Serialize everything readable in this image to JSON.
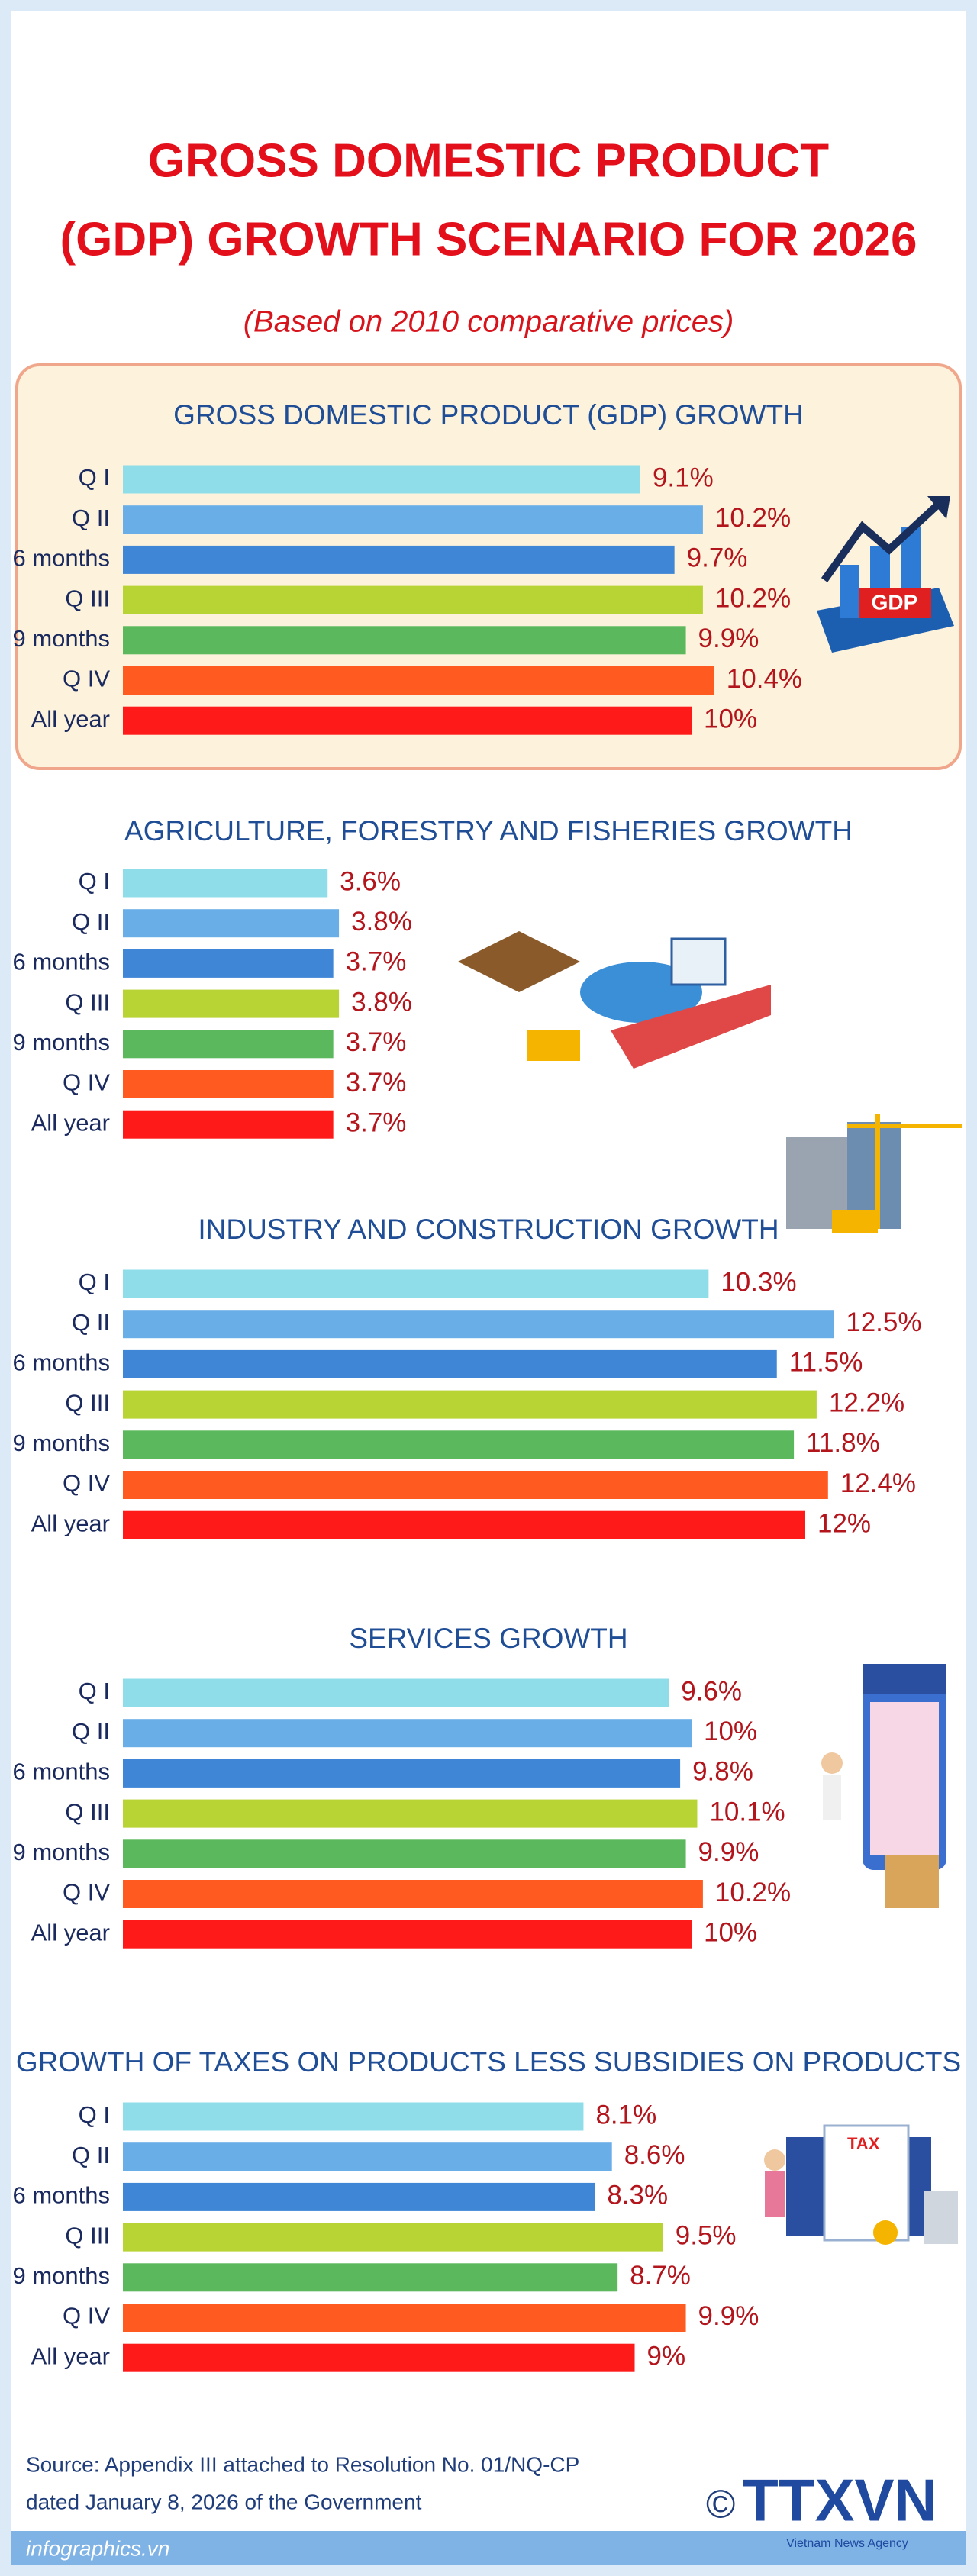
{
  "header": {
    "title": [
      "GROSS DOMESTIC PRODUCT",
      "(GDP) GROWTH SCENARIO FOR 2026"
    ],
    "subtitle": "(Based on 2010 comparative prices)"
  },
  "chart_data": [
    {
      "type": "bar",
      "title": "GROSS DOMESTIC PRODUCT (GDP) GROWTH",
      "categories": [
        "Q I",
        "Q II",
        "6 months",
        "Q III",
        "9 months",
        "Q IV",
        "All year"
      ],
      "values": [
        9.1,
        10.2,
        9.7,
        10.2,
        9.9,
        10.4,
        10
      ],
      "value_labels": [
        "9.1%",
        "10.2%",
        "9.7%",
        "10.2%",
        "9.9%",
        "10.4%",
        "10%"
      ],
      "colors": [
        "#8fdde9",
        "#6aaee8",
        "#3f86d6",
        "#b7d334",
        "#5cb85c",
        "#ff5a1f",
        "#ff1a1a"
      ]
    },
    {
      "type": "bar",
      "title": "AGRICULTURE, FORESTRY AND FISHERIES GROWTH",
      "categories": [
        "Q I",
        "Q II",
        "6 months",
        "Q III",
        "9 months",
        "Q IV",
        "All year"
      ],
      "values": [
        3.6,
        3.8,
        3.7,
        3.8,
        3.7,
        3.7,
        3.7
      ],
      "value_labels": [
        "3.6%",
        "3.8%",
        "3.7%",
        "3.8%",
        "3.7%",
        "3.7%",
        "3.7%"
      ],
      "colors": [
        "#8fdde9",
        "#6aaee8",
        "#3f86d6",
        "#b7d334",
        "#5cb85c",
        "#ff5a1f",
        "#ff1a1a"
      ]
    },
    {
      "type": "bar",
      "title": "INDUSTRY AND CONSTRUCTION GROWTH",
      "categories": [
        "Q I",
        "Q II",
        "6 months",
        "Q III",
        "9 months",
        "Q IV",
        "All year"
      ],
      "values": [
        10.3,
        12.5,
        11.5,
        12.2,
        11.8,
        12.4,
        12
      ],
      "value_labels": [
        "10.3%",
        "12.5%",
        "11.5%",
        "12.2%",
        "11.8%",
        "12.4%",
        "12%"
      ],
      "colors": [
        "#8fdde9",
        "#6aaee8",
        "#3f86d6",
        "#b7d334",
        "#5cb85c",
        "#ff5a1f",
        "#ff1a1a"
      ]
    },
    {
      "type": "bar",
      "title": "SERVICES GROWTH",
      "categories": [
        "Q I",
        "Q II",
        "6 months",
        "Q III",
        "9 months",
        "Q IV",
        "All year"
      ],
      "values": [
        9.6,
        10,
        9.8,
        10.1,
        9.9,
        10.2,
        10
      ],
      "value_labels": [
        "9.6%",
        "10%",
        "9.8%",
        "10.1%",
        "9.9%",
        "10.2%",
        "10%"
      ],
      "colors": [
        "#8fdde9",
        "#6aaee8",
        "#3f86d6",
        "#b7d334",
        "#5cb85c",
        "#ff5a1f",
        "#ff1a1a"
      ]
    },
    {
      "type": "bar",
      "title": "GROWTH OF TAXES ON PRODUCTS LESS SUBSIDIES ON PRODUCTS",
      "categories": [
        "Q I",
        "Q II",
        "6 months",
        "Q III",
        "9 months",
        "Q IV",
        "All year"
      ],
      "values": [
        8.1,
        8.6,
        8.3,
        9.5,
        8.7,
        9.9,
        9
      ],
      "value_labels": [
        "8.1%",
        "8.6%",
        "8.3%",
        "9.5%",
        "8.7%",
        "9.9%",
        "9%"
      ],
      "colors": [
        "#8fdde9",
        "#6aaee8",
        "#3f86d6",
        "#b7d334",
        "#5cb85c",
        "#ff5a1f",
        "#ff1a1a"
      ]
    }
  ],
  "footer": {
    "source": [
      "Source: Appendix III attached to Resolution No. 01/NQ-CP",
      "dated January 8, 2026 of the Government"
    ],
    "site": "infographics.vn",
    "copyright": "©",
    "logo": "TTXVN",
    "agency": "Vietnam News Agency"
  }
}
